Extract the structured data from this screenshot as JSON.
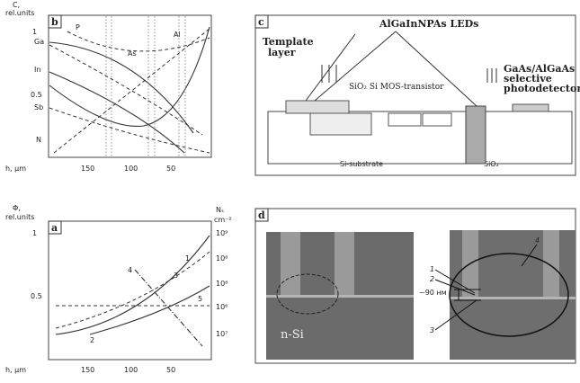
{
  "panels": {
    "b": {
      "label": "b",
      "y_label": "C,",
      "y_unit": "rel.units",
      "y_ticks": [
        "1",
        "0.5"
      ],
      "x_label": "h, μm",
      "x_ticks": [
        "150",
        "100",
        "50"
      ],
      "curves": [
        "Ga",
        "In",
        "Sb",
        "N",
        "P",
        "As",
        "Al"
      ]
    },
    "a": {
      "label": "a",
      "y_label": "Φ,",
      "y_unit": "rel.units",
      "y_ticks": [
        "1",
        "0.5"
      ],
      "y2_label": "Nₛ",
      "y2_unit": "cm⁻²",
      "y2_ticks": [
        "10⁹",
        "10⁸",
        "10⁸",
        "10⁶",
        "10⁷"
      ],
      "x_label": "h, μm",
      "x_ticks": [
        "150",
        "100",
        "50"
      ],
      "curves": [
        "1",
        "2",
        "3",
        "4",
        "5"
      ]
    },
    "c": {
      "label": "c",
      "template": "Template",
      "template2": "layer",
      "leds": "AlGaInNPAs LEDs",
      "mos": "SiO₂ Si MOS-transistor",
      "detector1": "GaAs/AlGaAs",
      "detector2": "selective",
      "detector3": "photodetector",
      "substrate": "Si-substrate",
      "oxide": "SiO₂"
    },
    "d": {
      "label": "d",
      "nsi": "n-Si",
      "thickness": "~90 нм",
      "markers": [
        "1",
        "2",
        "3",
        "4"
      ]
    }
  }
}
